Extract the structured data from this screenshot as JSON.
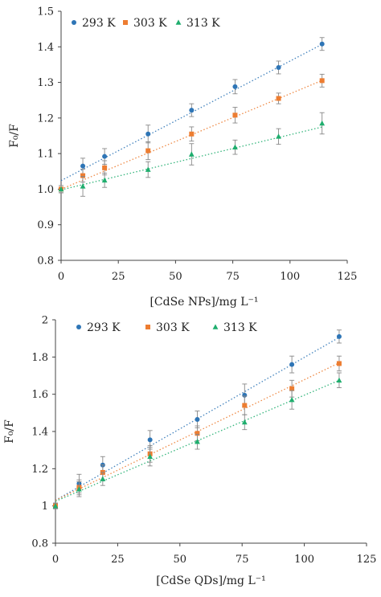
{
  "chart_data": [
    {
      "type": "scatter",
      "title": "",
      "xlabel": "[CdSe NPs]/mg L⁻¹",
      "ylabel": "F₀/F",
      "xlim": [
        0,
        125
      ],
      "ylim": [
        0.8,
        1.5
      ],
      "xticks": [
        0,
        25,
        50,
        75,
        100,
        125
      ],
      "xtick_labels": [
        "0",
        "25",
        "50",
        "75",
        "100",
        "125"
      ],
      "yticks": [
        0.8,
        0.9,
        1.0,
        1.1,
        1.2,
        1.3,
        1.4,
        1.5
      ],
      "ytick_labels": [
        "0.8",
        "0.9",
        "1.0",
        "1.1",
        "1.2",
        "1.3",
        "1.4",
        "1.5"
      ],
      "grid": false,
      "legend_position": "top-left",
      "x": [
        0,
        9.5,
        19,
        38,
        57,
        76,
        95,
        114
      ],
      "series": [
        {
          "name": "293 K",
          "color": "#2e75b6",
          "marker": "circle",
          "values": [
            1.0,
            1.065,
            1.092,
            1.155,
            1.222,
            1.288,
            1.342,
            1.408
          ],
          "errors": [
            0.01,
            0.022,
            0.022,
            0.025,
            0.018,
            0.02,
            0.018,
            0.018
          ],
          "fit": {
            "intercept": 1.024,
            "slope": 0.00336
          }
        },
        {
          "name": "303 K",
          "color": "#ed7d31",
          "marker": "square",
          "values": [
            1.0,
            1.038,
            1.06,
            1.108,
            1.155,
            1.208,
            1.255,
            1.305
          ],
          "errors": [
            0.01,
            0.018,
            0.02,
            0.025,
            0.02,
            0.022,
            0.015,
            0.018
          ],
          "fit": {
            "intercept": 1.0,
            "slope": 0.00268
          }
        },
        {
          "name": "313 K",
          "color": "#1fae6e",
          "marker": "triangle",
          "values": [
            1.0,
            1.008,
            1.025,
            1.055,
            1.098,
            1.118,
            1.148,
            1.185
          ],
          "errors": [
            0.01,
            0.028,
            0.02,
            0.022,
            0.03,
            0.02,
            0.022,
            0.03
          ],
          "fit": {
            "intercept": 0.998,
            "slope": 0.00155
          }
        }
      ]
    },
    {
      "type": "scatter",
      "title": "",
      "xlabel": "[CdSe QDs]/mg L⁻¹",
      "ylabel": "F₀/F",
      "xlim": [
        0,
        125
      ],
      "ylim": [
        0.8,
        2.0
      ],
      "xticks": [
        0,
        25,
        50,
        75,
        100,
        125
      ],
      "xtick_labels": [
        "0",
        "25",
        "50",
        "75",
        "100",
        "125"
      ],
      "yticks": [
        0.8,
        1.0,
        1.2,
        1.4,
        1.6,
        1.8,
        2.0
      ],
      "ytick_labels": [
        "0.8",
        "1",
        "1.2",
        "1.4",
        "1.6",
        "1.8",
        "2"
      ],
      "grid": false,
      "legend_position": "top",
      "x": [
        0,
        9.5,
        19,
        38,
        57,
        76,
        95,
        114
      ],
      "series": [
        {
          "name": "293 K",
          "color": "#2e75b6",
          "marker": "circle",
          "values": [
            1.0,
            1.12,
            1.22,
            1.355,
            1.465,
            1.595,
            1.76,
            1.91
          ],
          "errors": [
            0.015,
            0.05,
            0.045,
            0.05,
            0.045,
            0.06,
            0.045,
            0.035
          ],
          "fit": {
            "intercept": 1.03,
            "slope": 0.00768
          }
        },
        {
          "name": "303 K",
          "color": "#ed7d31",
          "marker": "square",
          "values": [
            1.0,
            1.1,
            1.18,
            1.28,
            1.39,
            1.54,
            1.63,
            1.765
          ],
          "errors": [
            0.015,
            0.04,
            0.04,
            0.045,
            0.04,
            0.05,
            0.045,
            0.04
          ],
          "fit": {
            "intercept": 1.03,
            "slope": 0.00648
          }
        },
        {
          "name": "313 K",
          "color": "#1fae6e",
          "marker": "triangle",
          "values": [
            1.0,
            1.09,
            1.145,
            1.265,
            1.345,
            1.45,
            1.57,
            1.675
          ],
          "errors": [
            0.015,
            0.04,
            0.035,
            0.05,
            0.04,
            0.04,
            0.05,
            0.04
          ],
          "fit": {
            "intercept": 1.025,
            "slope": 0.0057
          }
        }
      ]
    }
  ]
}
